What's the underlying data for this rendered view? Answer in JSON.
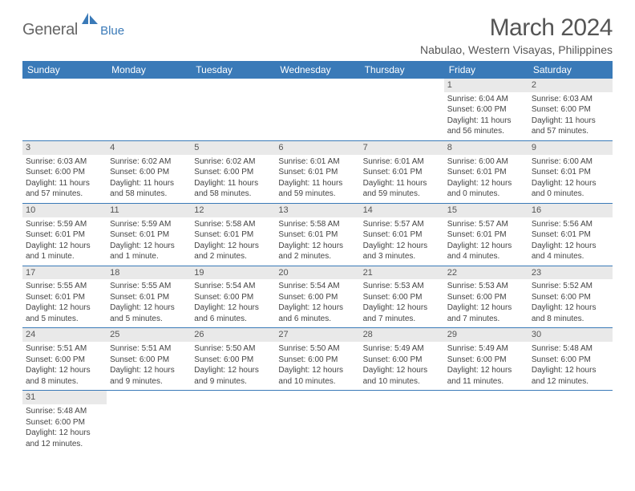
{
  "brand": {
    "general": "General",
    "blue": "Blue"
  },
  "colors": {
    "header_bg": "#3a7ab8",
    "header_text": "#ffffff",
    "day_head_bg": "#e9e9e9",
    "cell_border": "#3a7ab8",
    "page_bg": "#ffffff",
    "logo_shape": "#3a7ab8"
  },
  "title": "March 2024",
  "location": "Nabulao, Western Visayas, Philippines",
  "typography": {
    "title_fontsize": 30,
    "location_fontsize": 14,
    "header_fontsize": 12,
    "cell_fontsize": 10
  },
  "weekdays": [
    "Sunday",
    "Monday",
    "Tuesday",
    "Wednesday",
    "Thursday",
    "Friday",
    "Saturday"
  ],
  "weeks": [
    [
      null,
      null,
      null,
      null,
      null,
      {
        "day": "1",
        "sunrise": "Sunrise: 6:04 AM",
        "sunset": "Sunset: 6:00 PM",
        "daylight1": "Daylight: 11 hours",
        "daylight2": "and 56 minutes."
      },
      {
        "day": "2",
        "sunrise": "Sunrise: 6:03 AM",
        "sunset": "Sunset: 6:00 PM",
        "daylight1": "Daylight: 11 hours",
        "daylight2": "and 57 minutes."
      }
    ],
    [
      {
        "day": "3",
        "sunrise": "Sunrise: 6:03 AM",
        "sunset": "Sunset: 6:00 PM",
        "daylight1": "Daylight: 11 hours",
        "daylight2": "and 57 minutes."
      },
      {
        "day": "4",
        "sunrise": "Sunrise: 6:02 AM",
        "sunset": "Sunset: 6:00 PM",
        "daylight1": "Daylight: 11 hours",
        "daylight2": "and 58 minutes."
      },
      {
        "day": "5",
        "sunrise": "Sunrise: 6:02 AM",
        "sunset": "Sunset: 6:00 PM",
        "daylight1": "Daylight: 11 hours",
        "daylight2": "and 58 minutes."
      },
      {
        "day": "6",
        "sunrise": "Sunrise: 6:01 AM",
        "sunset": "Sunset: 6:01 PM",
        "daylight1": "Daylight: 11 hours",
        "daylight2": "and 59 minutes."
      },
      {
        "day": "7",
        "sunrise": "Sunrise: 6:01 AM",
        "sunset": "Sunset: 6:01 PM",
        "daylight1": "Daylight: 11 hours",
        "daylight2": "and 59 minutes."
      },
      {
        "day": "8",
        "sunrise": "Sunrise: 6:00 AM",
        "sunset": "Sunset: 6:01 PM",
        "daylight1": "Daylight: 12 hours",
        "daylight2": "and 0 minutes."
      },
      {
        "day": "9",
        "sunrise": "Sunrise: 6:00 AM",
        "sunset": "Sunset: 6:01 PM",
        "daylight1": "Daylight: 12 hours",
        "daylight2": "and 0 minutes."
      }
    ],
    [
      {
        "day": "10",
        "sunrise": "Sunrise: 5:59 AM",
        "sunset": "Sunset: 6:01 PM",
        "daylight1": "Daylight: 12 hours",
        "daylight2": "and 1 minute."
      },
      {
        "day": "11",
        "sunrise": "Sunrise: 5:59 AM",
        "sunset": "Sunset: 6:01 PM",
        "daylight1": "Daylight: 12 hours",
        "daylight2": "and 1 minute."
      },
      {
        "day": "12",
        "sunrise": "Sunrise: 5:58 AM",
        "sunset": "Sunset: 6:01 PM",
        "daylight1": "Daylight: 12 hours",
        "daylight2": "and 2 minutes."
      },
      {
        "day": "13",
        "sunrise": "Sunrise: 5:58 AM",
        "sunset": "Sunset: 6:01 PM",
        "daylight1": "Daylight: 12 hours",
        "daylight2": "and 2 minutes."
      },
      {
        "day": "14",
        "sunrise": "Sunrise: 5:57 AM",
        "sunset": "Sunset: 6:01 PM",
        "daylight1": "Daylight: 12 hours",
        "daylight2": "and 3 minutes."
      },
      {
        "day": "15",
        "sunrise": "Sunrise: 5:57 AM",
        "sunset": "Sunset: 6:01 PM",
        "daylight1": "Daylight: 12 hours",
        "daylight2": "and 4 minutes."
      },
      {
        "day": "16",
        "sunrise": "Sunrise: 5:56 AM",
        "sunset": "Sunset: 6:01 PM",
        "daylight1": "Daylight: 12 hours",
        "daylight2": "and 4 minutes."
      }
    ],
    [
      {
        "day": "17",
        "sunrise": "Sunrise: 5:55 AM",
        "sunset": "Sunset: 6:01 PM",
        "daylight1": "Daylight: 12 hours",
        "daylight2": "and 5 minutes."
      },
      {
        "day": "18",
        "sunrise": "Sunrise: 5:55 AM",
        "sunset": "Sunset: 6:01 PM",
        "daylight1": "Daylight: 12 hours",
        "daylight2": "and 5 minutes."
      },
      {
        "day": "19",
        "sunrise": "Sunrise: 5:54 AM",
        "sunset": "Sunset: 6:00 PM",
        "daylight1": "Daylight: 12 hours",
        "daylight2": "and 6 minutes."
      },
      {
        "day": "20",
        "sunrise": "Sunrise: 5:54 AM",
        "sunset": "Sunset: 6:00 PM",
        "daylight1": "Daylight: 12 hours",
        "daylight2": "and 6 minutes."
      },
      {
        "day": "21",
        "sunrise": "Sunrise: 5:53 AM",
        "sunset": "Sunset: 6:00 PM",
        "daylight1": "Daylight: 12 hours",
        "daylight2": "and 7 minutes."
      },
      {
        "day": "22",
        "sunrise": "Sunrise: 5:53 AM",
        "sunset": "Sunset: 6:00 PM",
        "daylight1": "Daylight: 12 hours",
        "daylight2": "and 7 minutes."
      },
      {
        "day": "23",
        "sunrise": "Sunrise: 5:52 AM",
        "sunset": "Sunset: 6:00 PM",
        "daylight1": "Daylight: 12 hours",
        "daylight2": "and 8 minutes."
      }
    ],
    [
      {
        "day": "24",
        "sunrise": "Sunrise: 5:51 AM",
        "sunset": "Sunset: 6:00 PM",
        "daylight1": "Daylight: 12 hours",
        "daylight2": "and 8 minutes."
      },
      {
        "day": "25",
        "sunrise": "Sunrise: 5:51 AM",
        "sunset": "Sunset: 6:00 PM",
        "daylight1": "Daylight: 12 hours",
        "daylight2": "and 9 minutes."
      },
      {
        "day": "26",
        "sunrise": "Sunrise: 5:50 AM",
        "sunset": "Sunset: 6:00 PM",
        "daylight1": "Daylight: 12 hours",
        "daylight2": "and 9 minutes."
      },
      {
        "day": "27",
        "sunrise": "Sunrise: 5:50 AM",
        "sunset": "Sunset: 6:00 PM",
        "daylight1": "Daylight: 12 hours",
        "daylight2": "and 10 minutes."
      },
      {
        "day": "28",
        "sunrise": "Sunrise: 5:49 AM",
        "sunset": "Sunset: 6:00 PM",
        "daylight1": "Daylight: 12 hours",
        "daylight2": "and 10 minutes."
      },
      {
        "day": "29",
        "sunrise": "Sunrise: 5:49 AM",
        "sunset": "Sunset: 6:00 PM",
        "daylight1": "Daylight: 12 hours",
        "daylight2": "and 11 minutes."
      },
      {
        "day": "30",
        "sunrise": "Sunrise: 5:48 AM",
        "sunset": "Sunset: 6:00 PM",
        "daylight1": "Daylight: 12 hours",
        "daylight2": "and 12 minutes."
      }
    ],
    [
      {
        "day": "31",
        "sunrise": "Sunrise: 5:48 AM",
        "sunset": "Sunset: 6:00 PM",
        "daylight1": "Daylight: 12 hours",
        "daylight2": "and 12 minutes."
      },
      null,
      null,
      null,
      null,
      null,
      null
    ]
  ]
}
